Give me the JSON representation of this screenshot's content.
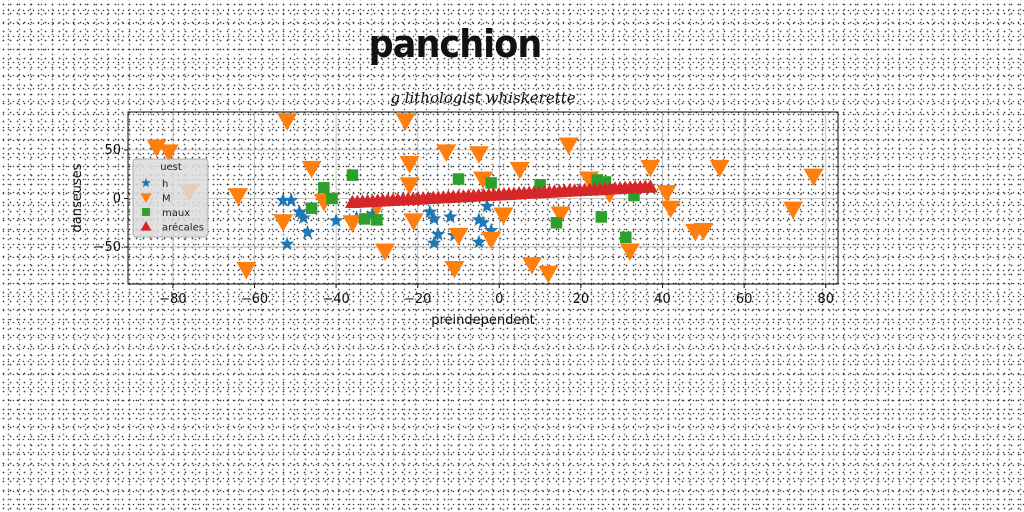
{
  "title": "panchion",
  "colors": {
    "blue": "#1f77b4",
    "orange": "#ff7f0e",
    "green": "#2ca02c",
    "red": "#d62728"
  },
  "chart_data": {
    "type": "scatter",
    "title": "g lithologist whiskerette",
    "xlabel": "preindependent",
    "ylabel": "danseuses",
    "xlim": [
      -91,
      83
    ],
    "ylim": [
      -88,
      89
    ],
    "xticks": [
      -80,
      -60,
      -40,
      -20,
      0,
      20,
      40,
      60,
      80
    ],
    "yticks": [
      -50,
      0,
      50
    ],
    "grid": true,
    "legend": {
      "title": "uest",
      "placement": "center-left"
    },
    "series": [
      {
        "name": "h",
        "marker": "star",
        "color": "#1f77b4",
        "points": [
          [
            -53,
            -2
          ],
          [
            -51,
            -2
          ],
          [
            -49,
            -14
          ],
          [
            -48,
            -20
          ],
          [
            -47,
            -35
          ],
          [
            -52,
            -47
          ],
          [
            -40,
            -23
          ],
          [
            -35,
            -20
          ],
          [
            -31,
            -16
          ],
          [
            -17,
            -14
          ],
          [
            -16,
            -21
          ],
          [
            -15,
            -37
          ],
          [
            -12,
            -19
          ],
          [
            -11,
            -38
          ],
          [
            -16,
            -46
          ],
          [
            -5,
            -22
          ],
          [
            -4,
            -25
          ],
          [
            -5,
            -45
          ],
          [
            -2,
            -33
          ],
          [
            -3,
            -8
          ]
        ]
      },
      {
        "name": "M",
        "marker": "triangle-down",
        "color": "#ff7f0e",
        "points": [
          [
            -84,
            53
          ],
          [
            -81,
            48
          ],
          [
            -76,
            7
          ],
          [
            -64,
            3
          ],
          [
            -62,
            -73
          ],
          [
            -52,
            80
          ],
          [
            -53,
            -24
          ],
          [
            -46,
            31
          ],
          [
            -43,
            -3
          ],
          [
            -36,
            -25
          ],
          [
            -30,
            -8
          ],
          [
            -28,
            -54
          ],
          [
            -23,
            80
          ],
          [
            -22,
            36
          ],
          [
            -22,
            14
          ],
          [
            -21,
            -23
          ],
          [
            -13,
            48
          ],
          [
            -11,
            -72
          ],
          [
            -10,
            -38
          ],
          [
            -5,
            46
          ],
          [
            -4,
            20
          ],
          [
            -2,
            -42
          ],
          [
            1,
            -17
          ],
          [
            5,
            30
          ],
          [
            8,
            -68
          ],
          [
            12,
            -77
          ],
          [
            15,
            -16
          ],
          [
            17,
            55
          ],
          [
            22,
            20
          ],
          [
            24,
            12
          ],
          [
            27,
            5
          ],
          [
            32,
            -54
          ],
          [
            37,
            32
          ],
          [
            41,
            6
          ],
          [
            42,
            -10
          ],
          [
            48,
            -34
          ],
          [
            50,
            -33
          ],
          [
            54,
            32
          ],
          [
            72,
            -11
          ],
          [
            77,
            23
          ]
        ]
      },
      {
        "name": "maux",
        "marker": "square",
        "color": "#2ca02c",
        "points": [
          [
            -46,
            -10
          ],
          [
            -43,
            11
          ],
          [
            -41,
            0
          ],
          [
            -36,
            24
          ],
          [
            -33,
            -21
          ],
          [
            -30,
            -22
          ],
          [
            -10,
            20
          ],
          [
            -2,
            16
          ],
          [
            10,
            14
          ],
          [
            14,
            -25
          ],
          [
            24,
            19
          ],
          [
            25,
            -19
          ],
          [
            26,
            17
          ],
          [
            31,
            -40
          ],
          [
            33,
            3
          ]
        ]
      },
      {
        "name": "arécales",
        "marker": "triangle-up",
        "color": "#d62728",
        "line_from": [
          -36,
          -4
        ],
        "line_to": [
          37,
          12
        ],
        "count": 60
      }
    ]
  }
}
